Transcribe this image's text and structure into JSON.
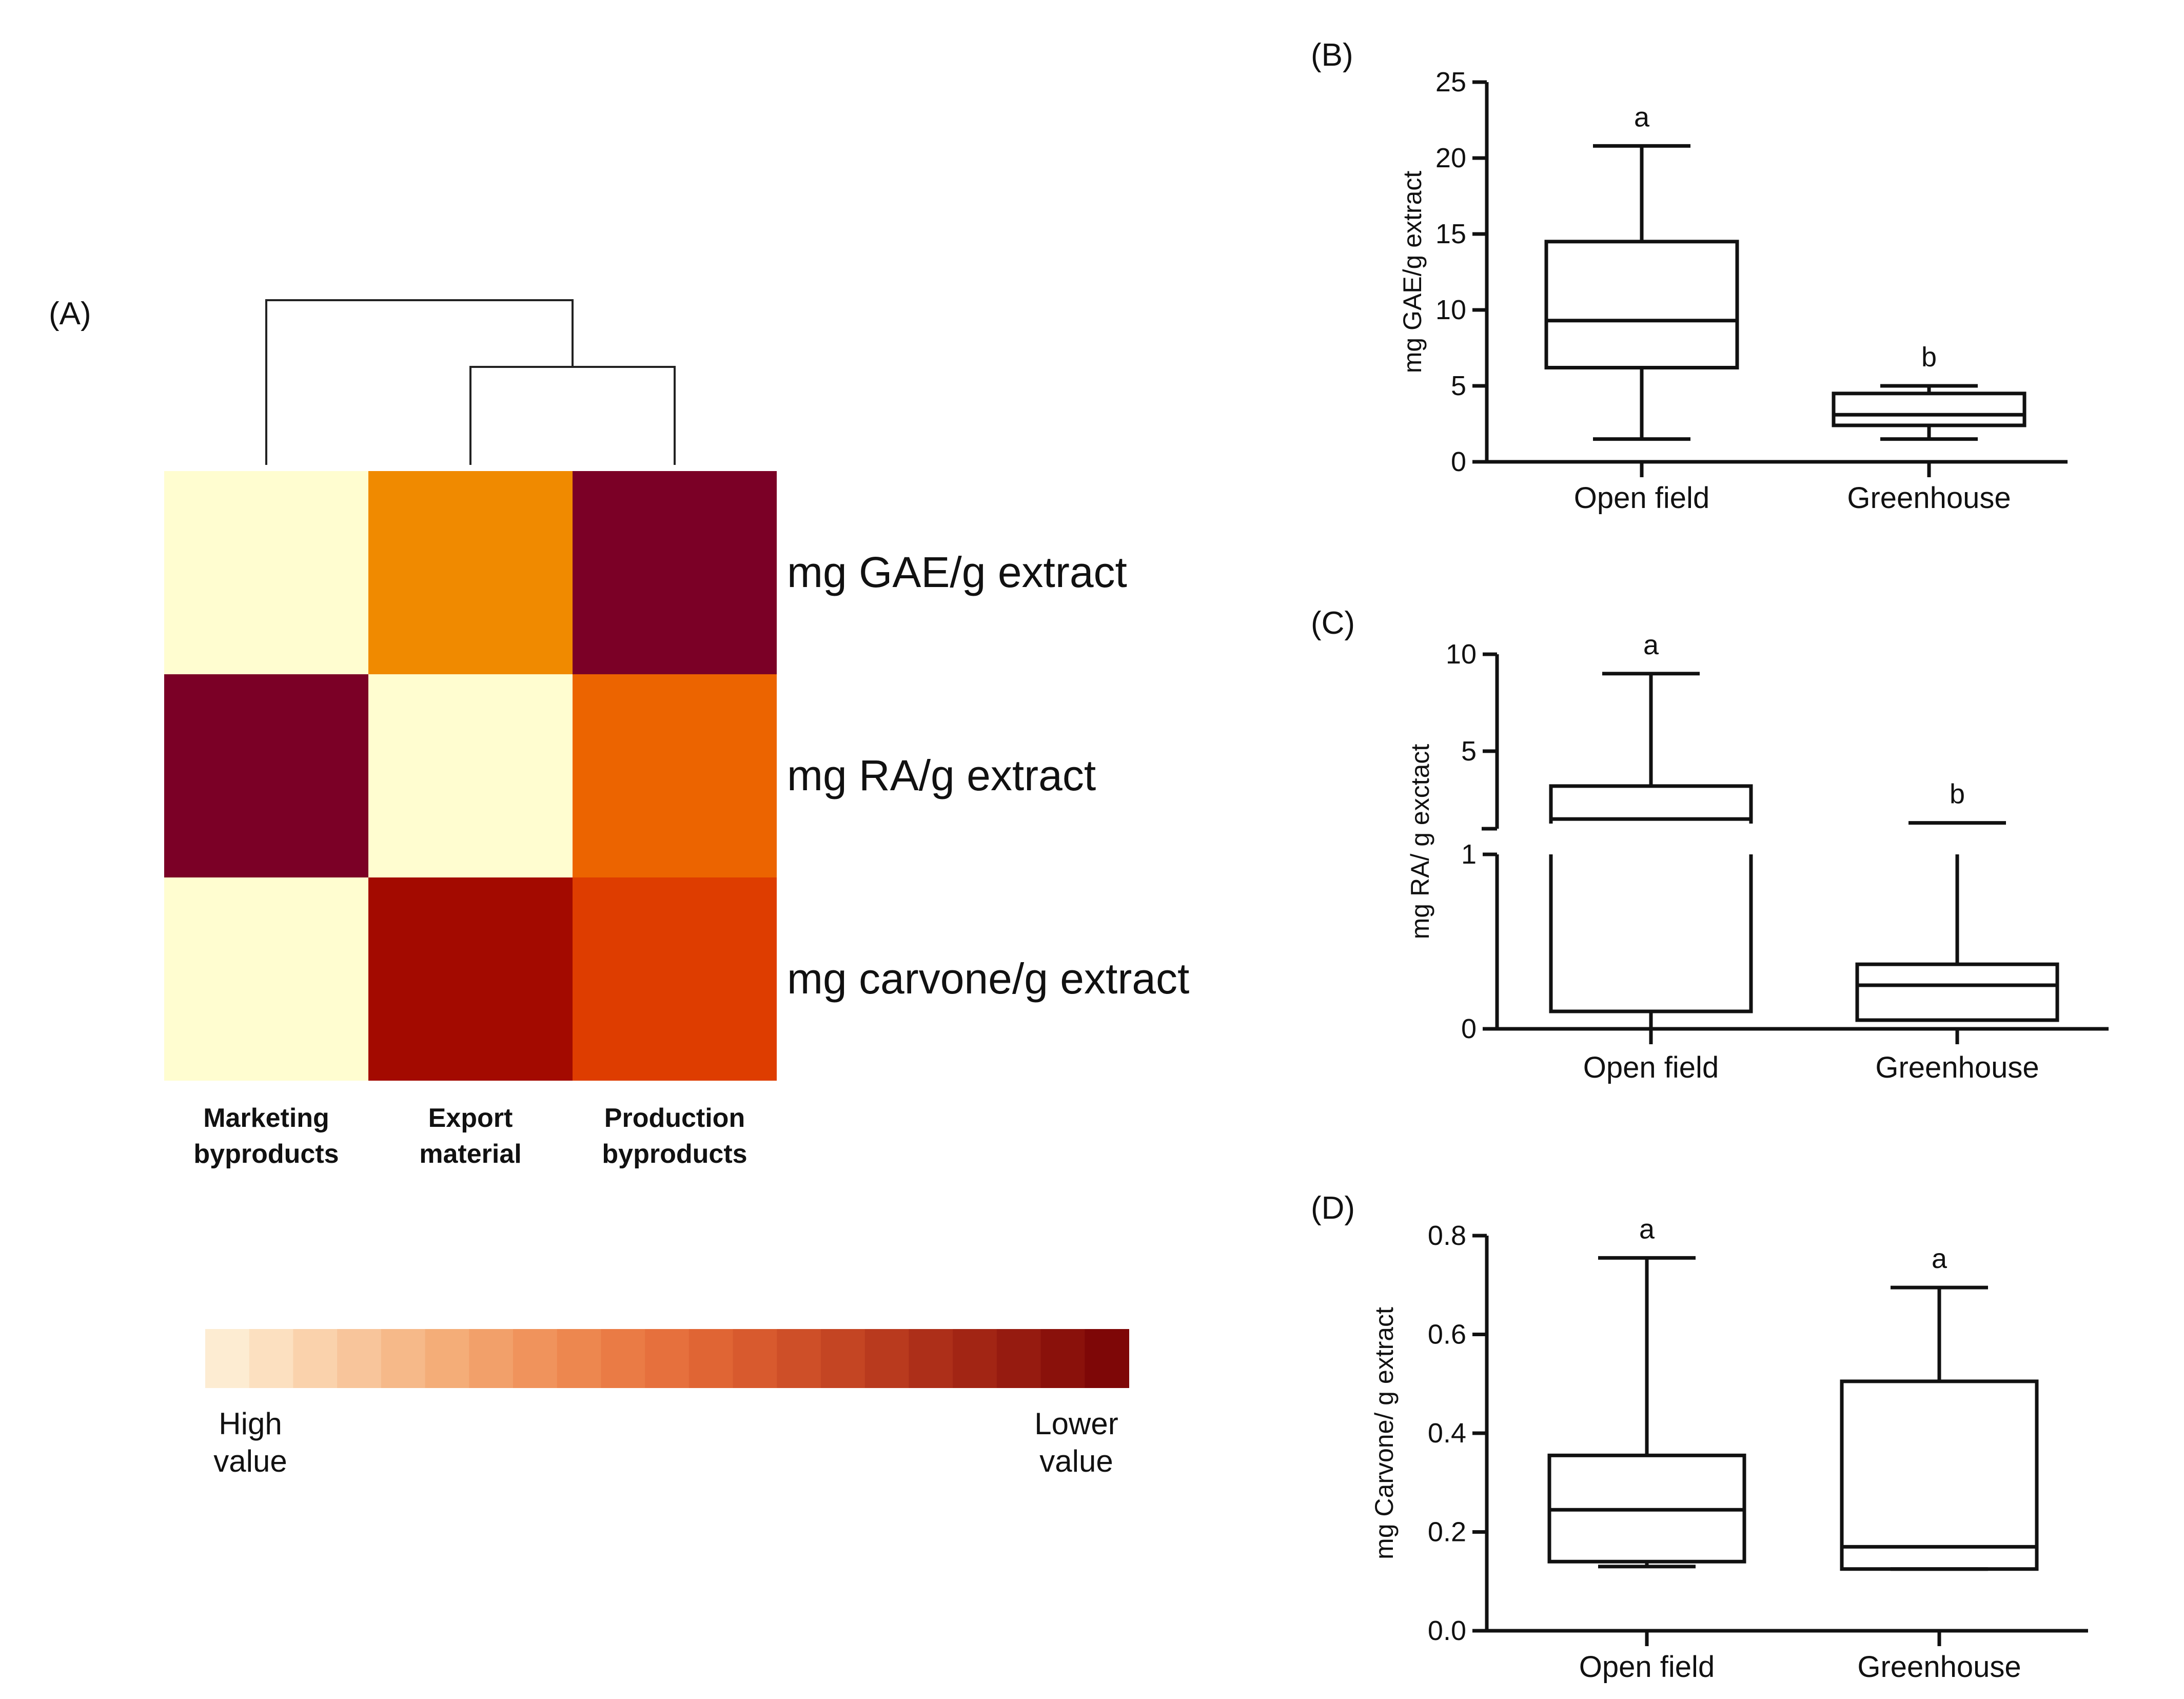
{
  "chart_data": [
    {
      "panel": "(A)",
      "type": "heatmap",
      "rows": [
        "mg GAE/g extract",
        "mg RA/g extract",
        "mg carvone/g extract"
      ],
      "columns": [
        {
          "line1": "Marketing",
          "line2": "byproducts"
        },
        {
          "line1": "Export",
          "line2": "material"
        },
        {
          "line1": "Production",
          "line2": "byproducts"
        }
      ],
      "cell_colors": [
        [
          "#fffdd0",
          "#f08a00",
          "#7b0026"
        ],
        [
          "#7b0026",
          "#fffdd0",
          "#ec6400"
        ],
        [
          "#fffdd0",
          "#a30a00",
          "#de3d00"
        ]
      ],
      "dendrogram": "((Export material, Production byproducts), Marketing byproducts)",
      "scale": {
        "low_label": {
          "line1": "High",
          "line2": "value"
        },
        "high_label": {
          "line1": "Lower",
          "line2": "value"
        },
        "colors": [
          "#fdecd2",
          "#fce0c0",
          "#fad2ac",
          "#f8c59b",
          "#f6b989",
          "#f4ad78",
          "#f2a06a",
          "#f0935c",
          "#ed874f",
          "#ea7b45",
          "#e6703d",
          "#e06534",
          "#d85a2e",
          "#ce4f28",
          "#c44523",
          "#b93a1e",
          "#ad2f19",
          "#a22514",
          "#961b10",
          "#8a110b",
          "#7e0707"
        ]
      }
    },
    {
      "panel": "(B)",
      "type": "box",
      "ylabel": "mg GAE/g extract",
      "ylim": [
        0,
        25
      ],
      "yticks": [
        0,
        5,
        10,
        15,
        20,
        25
      ],
      "categories": [
        "Open field",
        "Greenhouse"
      ],
      "boxes": [
        {
          "min": 1.5,
          "q1": 6.2,
          "median": 9.3,
          "q3": 14.5,
          "max": 20.8,
          "letter": "a"
        },
        {
          "min": 1.5,
          "q1": 2.4,
          "median": 3.1,
          "q3": 4.5,
          "max": 5.0,
          "letter": "b"
        }
      ]
    },
    {
      "panel": "(C)",
      "type": "box",
      "ylabel": "mg RA/ g exctact",
      "broken_axis": {
        "lower_range": [
          0,
          1
        ],
        "upper_range": [
          1,
          10
        ]
      },
      "yticks": [
        0,
        1,
        5,
        10
      ],
      "categories": [
        "Open field",
        "Greenhouse"
      ],
      "boxes": [
        {
          "min": 0.1,
          "q1": 0.1,
          "median": 1.5,
          "q3": 3.2,
          "max": 9.0,
          "letter": "a"
        },
        {
          "min": 0.05,
          "q1": 0.05,
          "median": 0.25,
          "q3": 0.37,
          "max": 1.3,
          "letter": "b"
        }
      ]
    },
    {
      "panel": "(D)",
      "type": "box",
      "ylabel": "mg Carvone/ g extract",
      "ylim": [
        0.0,
        0.8
      ],
      "yticks": [
        "0.0",
        "0.2",
        "0.4",
        "0.6",
        "0.8"
      ],
      "categories": [
        "Open field",
        "Greenhouse"
      ],
      "boxes": [
        {
          "min": 0.13,
          "q1": 0.14,
          "median": 0.245,
          "q3": 0.355,
          "max": 0.755,
          "letter": "a"
        },
        {
          "min": 0.125,
          "q1": 0.125,
          "median": 0.17,
          "q3": 0.505,
          "max": 0.695,
          "letter": "a"
        }
      ]
    }
  ]
}
